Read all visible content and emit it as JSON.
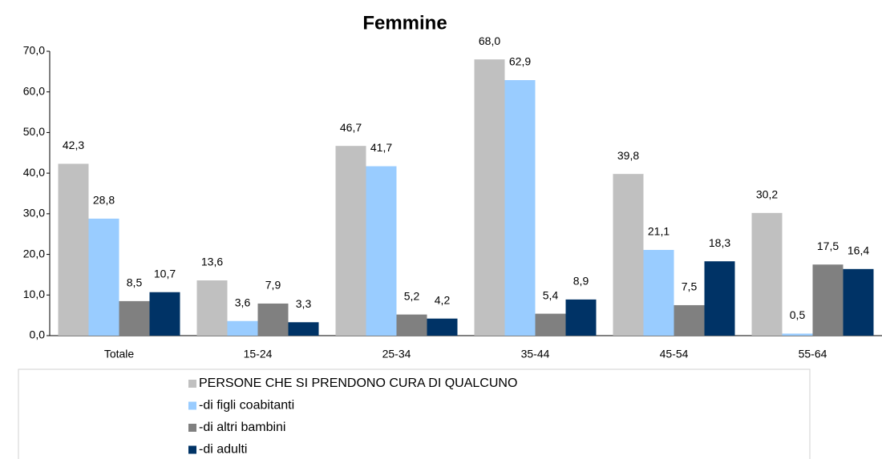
{
  "chart_data": {
    "type": "bar",
    "title": "Femmine",
    "categories": [
      "Totale",
      "15-24",
      "25-34",
      "35-44",
      "45-54",
      "55-64"
    ],
    "series": [
      {
        "name": "PERSONE CHE SI PRENDONO CURA DI QUALCUNO",
        "color": "#c0c0c0",
        "values": [
          42.3,
          13.6,
          46.7,
          68.0,
          39.8,
          30.2
        ],
        "value_labels": [
          "42,3",
          "13,6",
          "46,7",
          "68,0",
          "39,8",
          "30,2"
        ]
      },
      {
        "name": "-di figli coabitanti",
        "color": "#99ccff",
        "values": [
          28.8,
          3.6,
          41.7,
          62.9,
          21.1,
          0.5
        ],
        "value_labels": [
          "28,8",
          "3,6",
          "41,7",
          "62,9",
          "21,1",
          "0,5"
        ]
      },
      {
        "name": "-di altri bambini",
        "color": "#808080",
        "values": [
          8.5,
          7.9,
          5.2,
          5.4,
          7.5,
          17.5
        ],
        "value_labels": [
          "8,5",
          "7,9",
          "5,2",
          "5,4",
          "7,5",
          "17,5"
        ]
      },
      {
        "name": "-di adulti",
        "color": "#003366",
        "values": [
          10.7,
          3.3,
          4.2,
          8.9,
          18.3,
          16.4
        ],
        "value_labels": [
          "10,7",
          "3,3",
          "4,2",
          "8,9",
          "18,3",
          "16,4"
        ]
      }
    ],
    "ylim": [
      0,
      70
    ],
    "yticks": [
      {
        "value": 0,
        "label": "0,0"
      },
      {
        "value": 10,
        "label": "10,0"
      },
      {
        "value": 20,
        "label": "20,0"
      },
      {
        "value": 30,
        "label": "30,0"
      },
      {
        "value": 40,
        "label": "40,0"
      },
      {
        "value": 50,
        "label": "50,0"
      },
      {
        "value": 60,
        "label": "60,0"
      },
      {
        "value": 70,
        "label": "70,0"
      }
    ]
  }
}
